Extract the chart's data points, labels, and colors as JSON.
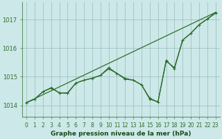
{
  "title": "Graphe pression niveau de la mer (hPa)",
  "background_color": "#cce8e8",
  "plot_bg_color": "#cce8e8",
  "grid_color": "#99bbbb",
  "line_color": "#2d6e2d",
  "xlim": [
    -0.5,
    23.5
  ],
  "ylim": [
    1013.6,
    1017.6
  ],
  "yticks": [
    1014,
    1015,
    1016,
    1017
  ],
  "xticks": [
    0,
    1,
    2,
    3,
    4,
    5,
    6,
    7,
    8,
    9,
    10,
    11,
    12,
    13,
    14,
    15,
    16,
    17,
    18,
    19,
    20,
    21,
    22,
    23
  ],
  "straight_line_x": [
    0,
    23
  ],
  "straight_line_y": [
    1014.1,
    1017.25
  ],
  "smooth_line_y": [
    1014.1,
    1014.22,
    1014.48,
    1014.6,
    1014.44,
    1014.44,
    1014.78,
    1014.88,
    1014.95,
    1015.05,
    1015.28,
    1015.12,
    1014.95,
    1014.88,
    1014.72,
    1014.25,
    1014.12,
    1015.55,
    1015.32,
    1016.28,
    1016.52,
    1016.82,
    1017.02,
    1017.22
  ],
  "zigzag_line_y": [
    1014.1,
    1014.22,
    1014.48,
    1014.62,
    1014.44,
    1014.42,
    1014.78,
    1014.88,
    1014.95,
    1015.05,
    1015.32,
    1015.12,
    1014.92,
    1014.88,
    1014.72,
    1014.22,
    1014.12,
    1015.58,
    1015.28,
    1016.28,
    1016.52,
    1016.82,
    1017.02,
    1017.25
  ],
  "marker_size": 3.0,
  "linewidth": 0.9,
  "tick_fontsize": 6,
  "label_fontsize": 6.5
}
